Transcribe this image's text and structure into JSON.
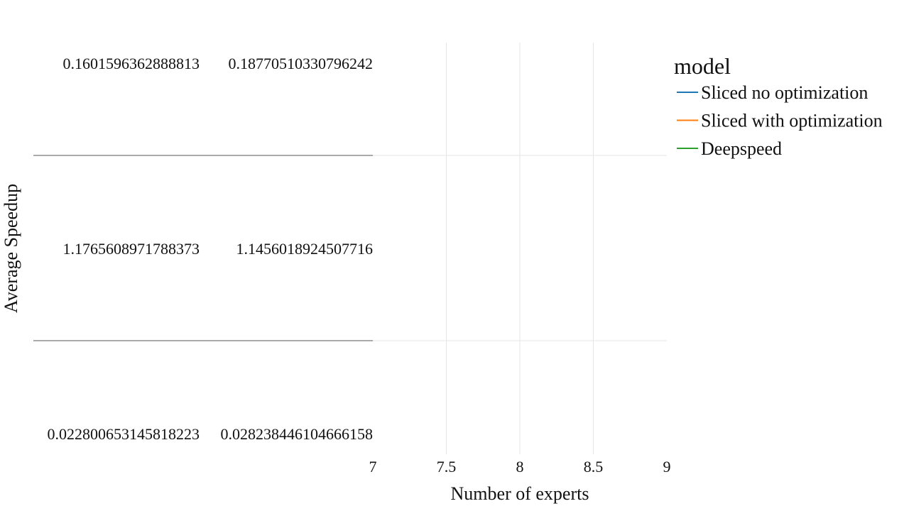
{
  "chart_data": {
    "type": "line",
    "title": "",
    "xlabel": "Number of experts",
    "ylabel": "Average Speedup",
    "xlim": [
      7,
      9
    ],
    "x_ticks": [
      "7",
      "7.5",
      "8",
      "8.5",
      "9"
    ],
    "grid": true,
    "legend": {
      "title": "model",
      "placement": "right",
      "entries": [
        {
          "name": "Sliced no optimization",
          "color": "#1f77b4"
        },
        {
          "name": "Sliced with optimization",
          "color": "#ff7f0e"
        },
        {
          "name": "Deepspeed",
          "color": "#2ca02c"
        }
      ]
    },
    "table": {
      "rows": [
        [
          "0.1601596362888813",
          "0.18770510330796242"
        ],
        [
          "1.1765608971788373",
          "1.1456018924507716"
        ],
        [
          "0.022800653145818223",
          "0.028238446104666158"
        ]
      ]
    }
  }
}
